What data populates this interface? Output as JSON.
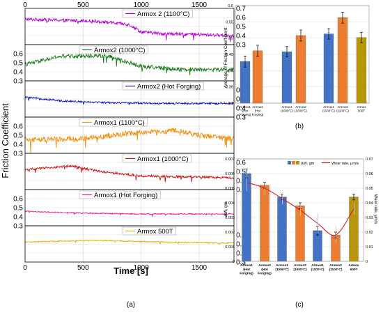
{
  "figure_labels": {
    "a": "(a)",
    "b": "(b)",
    "c": "(c)"
  },
  "chart_data": [
    {
      "id": "a",
      "type": "line",
      "xlabel": "Time [s]",
      "ylabel": "Friction Coefficient",
      "xlim": [
        0,
        1800
      ],
      "x_ticks": [
        "0",
        "500",
        "1000",
        "1500"
      ],
      "x_top_ticks": [
        "0",
        "500",
        "1000",
        "1500"
      ],
      "grid": true,
      "panel_y_ticks": [
        "0.7",
        "0.6",
        "0.5",
        "0.4",
        "0.3"
      ],
      "panels": [
        {
          "name": "Armox 2 (1100°C)",
          "color": "#b000d0",
          "side": "left",
          "ylim": [
            0.3,
            0.7
          ],
          "trend": [
            [
              0,
              0.58
            ],
            [
              600,
              0.56
            ],
            [
              900,
              0.52
            ],
            [
              1000,
              0.44
            ],
            [
              1200,
              0.42
            ],
            [
              1500,
              0.41
            ],
            [
              1800,
              0.4
            ]
          ]
        },
        {
          "name": "Armox2 (1000°C)",
          "color": "#1b7a1b",
          "side": "right",
          "ylim": [
            0.3,
            0.7
          ],
          "trend": [
            [
              0,
              0.48
            ],
            [
              300,
              0.57
            ],
            [
              700,
              0.58
            ],
            [
              1000,
              0.46
            ],
            [
              1300,
              0.43
            ],
            [
              1800,
              0.42
            ]
          ]
        },
        {
          "name": "Armox2 (Hot Forging)",
          "color": "#1010c0",
          "side": "left",
          "ylim": [
            0.3,
            0.7
          ],
          "trend": [
            [
              0,
              0.52
            ],
            [
              300,
              0.48
            ],
            [
              700,
              0.46
            ],
            [
              1200,
              0.45
            ],
            [
              1800,
              0.45
            ]
          ]
        },
        {
          "name": "Armox1 (1100°C)",
          "color": "#f09010",
          "side": "right",
          "ylim": [
            0.3,
            0.7
          ],
          "trend": [
            [
              0,
              0.45
            ],
            [
              500,
              0.46
            ],
            [
              900,
              0.52
            ],
            [
              1300,
              0.55
            ],
            [
              1500,
              0.5
            ],
            [
              1800,
              0.46
            ]
          ]
        },
        {
          "name": "Armox1 (1000°C)",
          "color": "#cc1010",
          "side": "left",
          "ylim": [
            0.3,
            0.7
          ],
          "trend": [
            [
              0,
              0.52
            ],
            [
              400,
              0.56
            ],
            [
              650,
              0.5
            ],
            [
              1000,
              0.45
            ],
            [
              1400,
              0.44
            ],
            [
              1800,
              0.43
            ]
          ]
        },
        {
          "name": "Armox1 (Hot Forging)",
          "color": "#ee1e8c",
          "side": "right",
          "ylim": [
            0.3,
            0.7
          ],
          "trend": [
            [
              0,
              0.46
            ],
            [
              500,
              0.44
            ],
            [
              1000,
              0.43
            ],
            [
              1500,
              0.43
            ],
            [
              1800,
              0.43
            ]
          ]
        },
        {
          "name": "Armox 500T",
          "color": "#e0b000",
          "side": "left",
          "ylim": [
            0.3,
            0.7
          ],
          "trend": [
            [
              0,
              0.52
            ],
            [
              600,
              0.54
            ],
            [
              1200,
              0.52
            ],
            [
              1800,
              0.51
            ]
          ]
        }
      ]
    },
    {
      "id": "b",
      "type": "bar",
      "ylabel": "Average of Friction Coefficient",
      "ylim": [
        0.3,
        0.6
      ],
      "y_ticks": [
        "0.6",
        "0.55",
        "0.5",
        "0.45",
        "0.4",
        "0.35",
        "0.3"
      ],
      "grid": true,
      "categories": [
        "Armox1 (Hot Forging)",
        "Armox2 (Hot Forging)",
        "Armox1 (1000°C)",
        "Armox2 (1000°C)",
        "Armox1 (1100°C)",
        "Armox2 (1100°C)",
        "Armox 500T"
      ],
      "category_labels": [
        [
          "Armox1",
          "(Hot",
          "Forging)"
        ],
        [
          "Armox2",
          "(Hot",
          "Forging)"
        ],
        [
          "Armox1",
          "(1000°C)"
        ],
        [
          "Armox2",
          "(1000°C)"
        ],
        [
          "Armox1",
          "(1100°C)"
        ],
        [
          "Armox2",
          "(1100°C)"
        ],
        [
          "Armox",
          "500T"
        ]
      ],
      "values": [
        0.428,
        0.461,
        0.458,
        0.508,
        0.513,
        0.563,
        0.502
      ],
      "errors": [
        0.017,
        0.017,
        0.016,
        0.017,
        0.016,
        0.017,
        0.016
      ],
      "colors": [
        "#4472c4",
        "#ed7d31",
        "#4472c4",
        "#ed7d31",
        "#4472c4",
        "#ed7d31",
        "#b8960b"
      ]
    },
    {
      "id": "c",
      "type": "bar",
      "ylabel": "ΔW, gm",
      "ylabel_right": "Wear rate, μm/s",
      "ylim": [
        0,
        0.007
      ],
      "ylim_right": [
        0,
        0.07
      ],
      "y_ticks": [
        "0.007",
        "0.006",
        "0.005",
        "0.004",
        "0.003",
        "0.002",
        "0.001",
        "0"
      ],
      "y_ticks_right": [
        "0.07",
        "0.06",
        "0.05",
        "0.04",
        "0.03",
        "0.02",
        "0.01",
        "0"
      ],
      "grid": true,
      "legend_position": "top-right",
      "legend_bar": "ΔW, gm",
      "legend_line": "Wear rate, μm/s",
      "categories": [
        "Armox1 (Hot Forging)",
        "Armox2 (Hot Forging)",
        "Armox1 (1000°C)",
        "Armox2 (1000°C)",
        "Armox1 (1100°C)",
        "Armox2 (1100°C)",
        "Armox 500T"
      ],
      "category_labels": [
        [
          "Armox1",
          "(Hot",
          "Forging)"
        ],
        [
          "Armox2",
          "(Hot",
          "Forging)"
        ],
        [
          "Armox1",
          "(1000°C)"
        ],
        [
          "Armox2",
          "(1000°C)"
        ],
        [
          "Armox1",
          "(1100°C)"
        ],
        [
          "Armox2",
          "(1100°C)"
        ],
        [
          "Armox",
          "500T"
        ]
      ],
      "values": [
        0.006,
        0.0052,
        0.0044,
        0.0038,
        0.0021,
        0.0018,
        0.0044
      ],
      "errors": [
        0.0003,
        0.0002,
        0.0002,
        0.0002,
        0.0003,
        0.0002,
        0.0002
      ],
      "colors": [
        "#4472c4",
        "#ed7d31",
        "#4472c4",
        "#ed7d31",
        "#4472c4",
        "#ed7d31",
        "#b8960b"
      ],
      "line_values": [
        0.054,
        0.05,
        0.043,
        0.035,
        0.026,
        0.018,
        0.036
      ],
      "line_errors": [
        0.006,
        0.005,
        0.004,
        0.004,
        0.007,
        0.006,
        0.004
      ],
      "line_color": "#d62020"
    }
  ]
}
